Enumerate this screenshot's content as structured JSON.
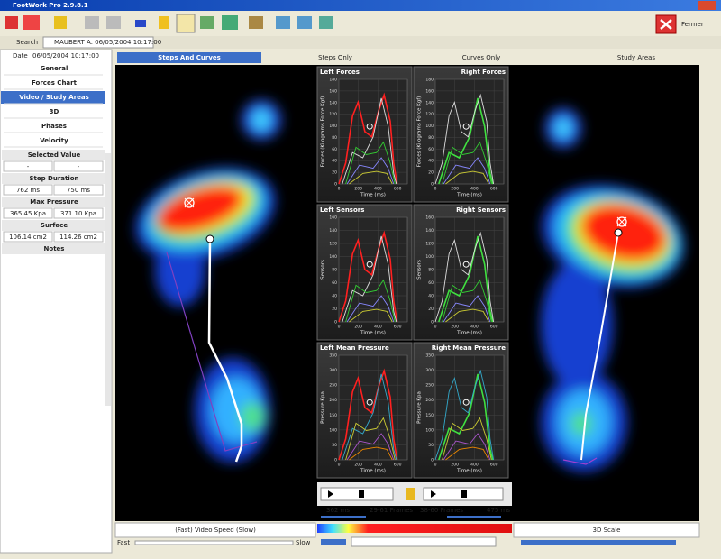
{
  "window": {
    "title": "FootWork Pro 2.9.8.1",
    "close_button": "Fermer"
  },
  "toolbar": {
    "search": "Search",
    "tab": "MAUBERT A. 06/05/2004 10:17:00"
  },
  "sidebar": {
    "date_label": "Date",
    "date": "06/05/2004 10:17:00",
    "menu": [
      "General",
      "Forces Chart",
      "Video / Study Areas",
      "3D",
      "Phases",
      "Velocity"
    ],
    "selected_value": {
      "title": "Selected Value",
      "left": "-",
      "right": "-"
    },
    "metrics": [
      {
        "title": "Step Duration",
        "left": "762 ms",
        "right": "750 ms"
      },
      {
        "title": "Max Pressure",
        "left": "365.45 Kpa",
        "right": "371.10 Kpa"
      },
      {
        "title": "Surface",
        "left": "106.14 cm2",
        "right": "114.26 cm2"
      }
    ],
    "notes": "Notes"
  },
  "view_tabs": [
    "Steps And Curves",
    "Steps Only",
    "Curves Only",
    "Study Areas"
  ],
  "charts": [
    {
      "title": "Left Forces",
      "y_label": "Forces (Kilograms Force Kgf)",
      "x_label": "Time (ms)",
      "xlim": [
        0,
        700
      ],
      "xticks": [
        0,
        200,
        400,
        600
      ],
      "ylim": [
        0,
        180
      ],
      "yticks": [
        0,
        20,
        40,
        60,
        80,
        100,
        120,
        140,
        160,
        180
      ]
    },
    {
      "title": "Right Forces",
      "y_label": "Forces (Kilograms Force Kgf)",
      "x_label": "Time (ms)",
      "xlim": [
        0,
        700
      ],
      "xticks": [
        0,
        200,
        400,
        600
      ],
      "ylim": [
        0,
        180
      ],
      "yticks": [
        0,
        20,
        40,
        60,
        80,
        100,
        120,
        140,
        160,
        180
      ]
    },
    {
      "title": "Left Sensors",
      "y_label": "Sensors",
      "x_label": "Time (ms)",
      "xlim": [
        0,
        700
      ],
      "xticks": [
        0,
        200,
        400,
        600
      ],
      "ylim": [
        0,
        160
      ],
      "yticks": [
        0,
        20,
        40,
        60,
        80,
        100,
        120,
        140,
        160
      ]
    },
    {
      "title": "Right Sensors",
      "y_label": "Sensors",
      "x_label": "Time (ms)",
      "xlim": [
        0,
        700
      ],
      "xticks": [
        0,
        200,
        400,
        600
      ],
      "ylim": [
        0,
        160
      ],
      "yticks": [
        0,
        20,
        40,
        60,
        80,
        100,
        120,
        140,
        160
      ]
    },
    {
      "title": "Left Mean Pressure",
      "y_label": "Pressure Kpa",
      "x_label": "Time (ms)",
      "xlim": [
        0,
        700
      ],
      "xticks": [
        0,
        200,
        400,
        600
      ],
      "ylim": [
        0,
        350
      ],
      "yticks": [
        0,
        50,
        100,
        150,
        200,
        250,
        300,
        350
      ]
    },
    {
      "title": "Right Mean Pressure",
      "y_label": "Pressure Kpa",
      "x_label": "Time (ms)",
      "xlim": [
        0,
        700
      ],
      "xticks": [
        0,
        200,
        400,
        600
      ],
      "ylim": [
        0,
        350
      ],
      "yticks": [
        0,
        50,
        100,
        150,
        200,
        250,
        300,
        350
      ]
    }
  ],
  "playback": {
    "left_time": "362 ms",
    "left_frames": "29-61 Frames",
    "right_frames": "38-60 Frames",
    "right_time": "475 ms"
  },
  "footer": {
    "video_speed": "(Fast) Video Speed (Slow)",
    "fast": "Fast",
    "slow": "Slow",
    "scale": "3D Scale"
  }
}
